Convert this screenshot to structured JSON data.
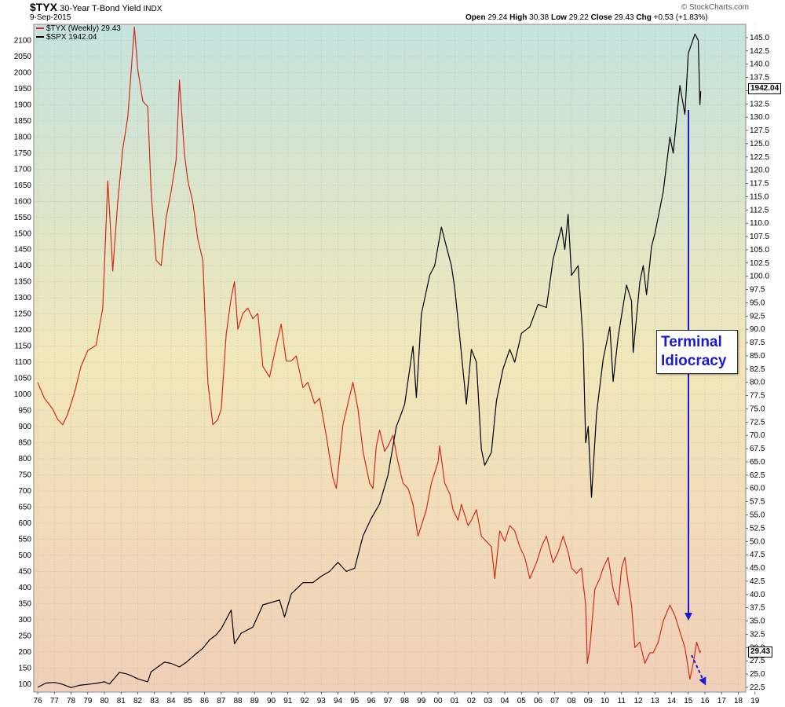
{
  "header": {
    "symbol": "$TYX",
    "name": "30-Year T-Bond Yield",
    "exchange": "INDX",
    "date": "9-Sep-2015",
    "watermark": "© StockCharts.com",
    "open_label": "Open",
    "open": "29.24",
    "high_label": "High",
    "high": "30.38",
    "low_label": "Low",
    "low": "29.22",
    "close_label": "Close",
    "close": "29.43",
    "chg_label": "Chg",
    "chg": "+0.53 (+1.83%)"
  },
  "legend": {
    "tyx": "$TYX (Weekly) 29.43",
    "spx": "$SPX 1942.04"
  },
  "tags": {
    "spx_last": "1942.04",
    "tyx_last": "29.43"
  },
  "annotation": {
    "line1": "Terminal",
    "line2": "Idiocracy"
  },
  "colors": {
    "tyx": "#d42a1c",
    "spx": "#000000",
    "arrow": "#1a1ad6"
  },
  "chart_data": {
    "type": "line",
    "title": "$TYX 30-Year T-Bond Yield INDX",
    "x_tick_labels": [
      "76",
      "77",
      "78",
      "79",
      "80",
      "81",
      "82",
      "83",
      "84",
      "85",
      "86",
      "87",
      "88",
      "89",
      "90",
      "91",
      "92",
      "93",
      "94",
      "95",
      "96",
      "97",
      "98",
      "99",
      "00",
      "01",
      "02",
      "03",
      "04",
      "05",
      "06",
      "07",
      "08",
      "09",
      "10",
      "11",
      "12",
      "13",
      "14",
      "15",
      "16",
      "17",
      "18",
      "19"
    ],
    "left_axis": {
      "series": "$SPX",
      "ylim": [
        75,
        2150
      ],
      "ticks": [
        100,
        150,
        200,
        250,
        300,
        350,
        400,
        450,
        500,
        550,
        600,
        650,
        700,
        750,
        800,
        850,
        900,
        950,
        1000,
        1050,
        1100,
        1150,
        1200,
        1250,
        1300,
        1350,
        1400,
        1450,
        1500,
        1550,
        1600,
        1650,
        1700,
        1750,
        1800,
        1850,
        1900,
        1950,
        2000,
        2050,
        2100
      ]
    },
    "right_axis": {
      "series": "$TYX",
      "ylim": [
        21.6,
        147.5
      ],
      "ticks": [
        "22.5",
        "25.0",
        "27.5",
        "30.0",
        "32.5",
        "35.0",
        "37.5",
        "40.0",
        "42.5",
        "45.0",
        "47.5",
        "50.0",
        "52.5",
        "55.0",
        "57.5",
        "60.0",
        "62.5",
        "65.0",
        "67.5",
        "70.0",
        "72.5",
        "75.0",
        "77.5",
        "80.0",
        "82.5",
        "85.0",
        "87.5",
        "90.0",
        "92.5",
        "95.0",
        "97.5",
        "100.0",
        "102.5",
        "105.0",
        "107.5",
        "110.0",
        "112.5",
        "115.0",
        "117.5",
        "120.0",
        "122.5",
        "125.0",
        "127.5",
        "130.0",
        "132.5",
        "135.0",
        "137.5",
        "140.0",
        "142.5",
        "145.0"
      ]
    },
    "series": [
      {
        "name": "$TYX (Weekly) 29.43",
        "axis": "right",
        "color": "#d42a1c",
        "points": [
          [
            1976.0,
            80
          ],
          [
            1976.4,
            77
          ],
          [
            1976.9,
            75
          ],
          [
            1977.2,
            73
          ],
          [
            1977.5,
            72
          ],
          [
            1977.8,
            74
          ],
          [
            1978.2,
            78
          ],
          [
            1978.6,
            83
          ],
          [
            1979.0,
            86
          ],
          [
            1979.5,
            87
          ],
          [
            1979.9,
            94
          ],
          [
            1980.2,
            118
          ],
          [
            1980.35,
            110
          ],
          [
            1980.5,
            101
          ],
          [
            1980.8,
            114
          ],
          [
            1981.1,
            124
          ],
          [
            1981.4,
            130
          ],
          [
            1981.8,
            147
          ],
          [
            1982.0,
            139
          ],
          [
            1982.3,
            133
          ],
          [
            1982.6,
            132
          ],
          [
            1982.8,
            116
          ],
          [
            1983.1,
            103
          ],
          [
            1983.4,
            102
          ],
          [
            1983.7,
            111
          ],
          [
            1984.0,
            116
          ],
          [
            1984.3,
            122
          ],
          [
            1984.5,
            137
          ],
          [
            1984.8,
            123
          ],
          [
            1985.0,
            118
          ],
          [
            1985.3,
            114
          ],
          [
            1985.6,
            107
          ],
          [
            1985.9,
            103
          ],
          [
            1986.0,
            95
          ],
          [
            1986.2,
            80
          ],
          [
            1986.5,
            72
          ],
          [
            1986.8,
            73
          ],
          [
            1987.0,
            75
          ],
          [
            1987.3,
            89
          ],
          [
            1987.6,
            96
          ],
          [
            1987.8,
            99
          ],
          [
            1988.0,
            90
          ],
          [
            1988.3,
            93
          ],
          [
            1988.6,
            94
          ],
          [
            1988.9,
            92
          ],
          [
            1989.2,
            93
          ],
          [
            1989.5,
            83
          ],
          [
            1989.9,
            81
          ],
          [
            1990.3,
            87
          ],
          [
            1990.6,
            91
          ],
          [
            1990.9,
            84
          ],
          [
            1991.2,
            84
          ],
          [
            1991.5,
            85
          ],
          [
            1991.9,
            79
          ],
          [
            1992.2,
            80
          ],
          [
            1992.6,
            76
          ],
          [
            1992.9,
            77
          ],
          [
            1993.3,
            70
          ],
          [
            1993.7,
            62
          ],
          [
            1993.9,
            60
          ],
          [
            1994.3,
            72
          ],
          [
            1994.6,
            76
          ],
          [
            1994.9,
            80
          ],
          [
            1995.2,
            75
          ],
          [
            1995.5,
            67
          ],
          [
            1995.9,
            61
          ],
          [
            1996.1,
            60
          ],
          [
            1996.3,
            68
          ],
          [
            1996.5,
            71
          ],
          [
            1996.8,
            67
          ],
          [
            1997.0,
            68
          ],
          [
            1997.3,
            70
          ],
          [
            1997.6,
            65
          ],
          [
            1997.9,
            61
          ],
          [
            1998.2,
            60
          ],
          [
            1998.5,
            57
          ],
          [
            1998.8,
            51
          ],
          [
            1999.0,
            53
          ],
          [
            1999.3,
            56
          ],
          [
            1999.6,
            61
          ],
          [
            1999.9,
            64
          ],
          [
            2000.0,
            65
          ],
          [
            2000.1,
            68
          ],
          [
            2000.4,
            61
          ],
          [
            2000.7,
            59
          ],
          [
            2000.9,
            56
          ],
          [
            2001.2,
            54
          ],
          [
            2001.4,
            57
          ],
          [
            2001.8,
            53
          ],
          [
            2002.0,
            54
          ],
          [
            2002.3,
            56
          ],
          [
            2002.6,
            51
          ],
          [
            2002.9,
            50
          ],
          [
            2003.2,
            49
          ],
          [
            2003.4,
            43
          ],
          [
            2003.7,
            52
          ],
          [
            2004.0,
            50
          ],
          [
            2004.3,
            53
          ],
          [
            2004.6,
            52
          ],
          [
            2004.9,
            49
          ],
          [
            2005.2,
            47
          ],
          [
            2005.5,
            43
          ],
          [
            2005.9,
            46
          ],
          [
            2006.2,
            49
          ],
          [
            2006.5,
            51
          ],
          [
            2006.9,
            46
          ],
          [
            2007.2,
            48
          ],
          [
            2007.5,
            51
          ],
          [
            2007.8,
            48
          ],
          [
            2008.0,
            45
          ],
          [
            2008.3,
            44
          ],
          [
            2008.6,
            45
          ],
          [
            2008.85,
            38
          ],
          [
            2008.95,
            27
          ],
          [
            2009.1,
            30
          ],
          [
            2009.4,
            41
          ],
          [
            2009.7,
            43
          ],
          [
            2009.9,
            45
          ],
          [
            2010.2,
            47
          ],
          [
            2010.5,
            41
          ],
          [
            2010.8,
            38
          ],
          [
            2011.0,
            45
          ],
          [
            2011.2,
            47
          ],
          [
            2011.4,
            42
          ],
          [
            2011.6,
            38
          ],
          [
            2011.8,
            30
          ],
          [
            2012.1,
            31
          ],
          [
            2012.4,
            27
          ],
          [
            2012.7,
            29
          ],
          [
            2012.9,
            29
          ],
          [
            2013.2,
            31
          ],
          [
            2013.5,
            35
          ],
          [
            2013.9,
            38
          ],
          [
            2014.2,
            36
          ],
          [
            2014.5,
            33
          ],
          [
            2014.8,
            30
          ],
          [
            2015.0,
            26
          ],
          [
            2015.1,
            24
          ],
          [
            2015.3,
            27
          ],
          [
            2015.5,
            31
          ],
          [
            2015.7,
            29
          ],
          [
            2015.75,
            29.43
          ]
        ]
      },
      {
        "name": "$SPX 1942.04",
        "axis": "left",
        "color": "#000000",
        "points": [
          [
            1976.0,
            90
          ],
          [
            1976.5,
            103
          ],
          [
            1977.0,
            105
          ],
          [
            1977.5,
            99
          ],
          [
            1978.0,
            89
          ],
          [
            1978.5,
            96
          ],
          [
            1979.0,
            99
          ],
          [
            1979.5,
            102
          ],
          [
            1980.0,
            107
          ],
          [
            1980.3,
            100
          ],
          [
            1980.9,
            136
          ],
          [
            1981.3,
            132
          ],
          [
            1981.6,
            126
          ],
          [
            1982.0,
            116
          ],
          [
            1982.6,
            107
          ],
          [
            1982.8,
            138
          ],
          [
            1983.2,
            153
          ],
          [
            1983.6,
            168
          ],
          [
            1984.0,
            164
          ],
          [
            1984.5,
            153
          ],
          [
            1984.9,
            167
          ],
          [
            1985.4,
            190
          ],
          [
            1985.9,
            211
          ],
          [
            1986.3,
            237
          ],
          [
            1986.7,
            253
          ],
          [
            1987.0,
            272
          ],
          [
            1987.6,
            330
          ],
          [
            1987.8,
            225
          ],
          [
            1988.2,
            258
          ],
          [
            1988.9,
            277
          ],
          [
            1989.5,
            346
          ],
          [
            1989.9,
            352
          ],
          [
            1990.5,
            361
          ],
          [
            1990.8,
            308
          ],
          [
            1991.2,
            380
          ],
          [
            1991.9,
            415
          ],
          [
            1992.5,
            415
          ],
          [
            1993.0,
            435
          ],
          [
            1993.5,
            450
          ],
          [
            1994.0,
            478
          ],
          [
            1994.5,
            450
          ],
          [
            1995.0,
            460
          ],
          [
            1995.5,
            560
          ],
          [
            1996.0,
            615
          ],
          [
            1996.5,
            660
          ],
          [
            1997.0,
            750
          ],
          [
            1997.5,
            900
          ],
          [
            1997.8,
            940
          ],
          [
            1998.0,
            970
          ],
          [
            1998.5,
            1150
          ],
          [
            1998.7,
            990
          ],
          [
            1999.0,
            1250
          ],
          [
            1999.5,
            1370
          ],
          [
            1999.8,
            1400
          ],
          [
            2000.2,
            1520
          ],
          [
            2000.5,
            1460
          ],
          [
            2000.8,
            1400
          ],
          [
            2001.0,
            1330
          ],
          [
            2001.3,
            1180
          ],
          [
            2001.7,
            970
          ],
          [
            2002.0,
            1140
          ],
          [
            2002.3,
            1100
          ],
          [
            2002.6,
            830
          ],
          [
            2002.8,
            780
          ],
          [
            2003.2,
            820
          ],
          [
            2003.5,
            980
          ],
          [
            2003.9,
            1080
          ],
          [
            2004.3,
            1140
          ],
          [
            2004.6,
            1100
          ],
          [
            2005.0,
            1190
          ],
          [
            2005.5,
            1210
          ],
          [
            2006.0,
            1280
          ],
          [
            2006.5,
            1270
          ],
          [
            2006.9,
            1420
          ],
          [
            2007.4,
            1520
          ],
          [
            2007.6,
            1450
          ],
          [
            2007.8,
            1560
          ],
          [
            2008.0,
            1370
          ],
          [
            2008.4,
            1400
          ],
          [
            2008.7,
            1160
          ],
          [
            2008.85,
            850
          ],
          [
            2009.0,
            900
          ],
          [
            2009.2,
            680
          ],
          [
            2009.5,
            940
          ],
          [
            2009.9,
            1110
          ],
          [
            2010.3,
            1210
          ],
          [
            2010.5,
            1040
          ],
          [
            2010.8,
            1180
          ],
          [
            2011.3,
            1340
          ],
          [
            2011.6,
            1290
          ],
          [
            2011.7,
            1130
          ],
          [
            2012.1,
            1350
          ],
          [
            2012.3,
            1400
          ],
          [
            2012.5,
            1310
          ],
          [
            2012.8,
            1460
          ],
          [
            2013.0,
            1500
          ],
          [
            2013.5,
            1630
          ],
          [
            2013.9,
            1800
          ],
          [
            2014.1,
            1750
          ],
          [
            2014.5,
            1960
          ],
          [
            2014.8,
            1870
          ],
          [
            2015.0,
            2060
          ],
          [
            2015.4,
            2120
          ],
          [
            2015.6,
            2100
          ],
          [
            2015.7,
            1900
          ],
          [
            2015.75,
            1942.04
          ]
        ]
      }
    ],
    "ylim": [
      75,
      2150
    ]
  }
}
